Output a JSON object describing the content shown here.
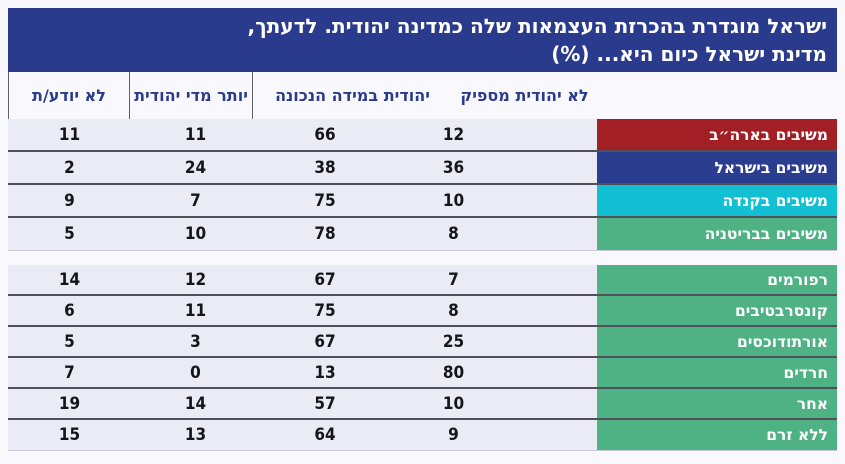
{
  "title": {
    "line1": "ישראל מוגדרת בהכרזת העצמאות שלה כמדינה יהודית. לדעתך,",
    "line2": "מדינת ישראל כיום היא... (%)"
  },
  "colors": {
    "title_bg": "#2A3B8D",
    "header_text": "#2A3B8D",
    "row_bg": "#EAEBF4",
    "page_bg": "#F8F8FD",
    "separator": "#50505B",
    "usa_red": "#A21F26",
    "israel_blue": "#2B3D8F",
    "canada_cyan": "#13BFD2",
    "britain_green": "#4FB284"
  },
  "chart_data": {
    "type": "table",
    "title": "ישראל מוגדרת בהכרזת העצמאות שלה כמדינה יהודית. לדעתך, מדינת ישראל כיום היא... (%)",
    "unit": "%",
    "columns": [
      "לא יהודית מספיק",
      "יהודית במידה הנכונה",
      "יותר מדי יהודית",
      "לא יודע/ת"
    ],
    "groups": [
      {
        "rows": [
          {
            "label": "משיבים בארה״ב",
            "color": "#A21F26",
            "values": [
              12,
              66,
              11,
              11
            ]
          },
          {
            "label": "משיבים בישראל",
            "color": "#2B3D8F",
            "values": [
              36,
              38,
              24,
              2
            ]
          },
          {
            "label": "משיבים בקנדה",
            "color": "#13BFD2",
            "values": [
              10,
              75,
              7,
              9
            ]
          },
          {
            "label": "משיבים בבריטניה",
            "color": "#4FB284",
            "values": [
              8,
              78,
              10,
              5
            ]
          }
        ]
      },
      {
        "rows": [
          {
            "label": "רפורמים",
            "color": "#4FB284",
            "values": [
              7,
              67,
              12,
              14
            ]
          },
          {
            "label": "קונסרבטיבים",
            "color": "#4FB284",
            "values": [
              8,
              75,
              11,
              6
            ]
          },
          {
            "label": "אורתודוכסים",
            "color": "#4FB284",
            "values": [
              25,
              67,
              3,
              5
            ]
          },
          {
            "label": "חרדים",
            "color": "#4FB284",
            "values": [
              80,
              13,
              0,
              7
            ]
          },
          {
            "label": "אחר",
            "color": "#4FB284",
            "values": [
              10,
              57,
              14,
              19
            ]
          },
          {
            "label": "ללא זרם",
            "color": "#4FB284",
            "values": [
              9,
              64,
              13,
              15
            ]
          }
        ]
      }
    ]
  }
}
